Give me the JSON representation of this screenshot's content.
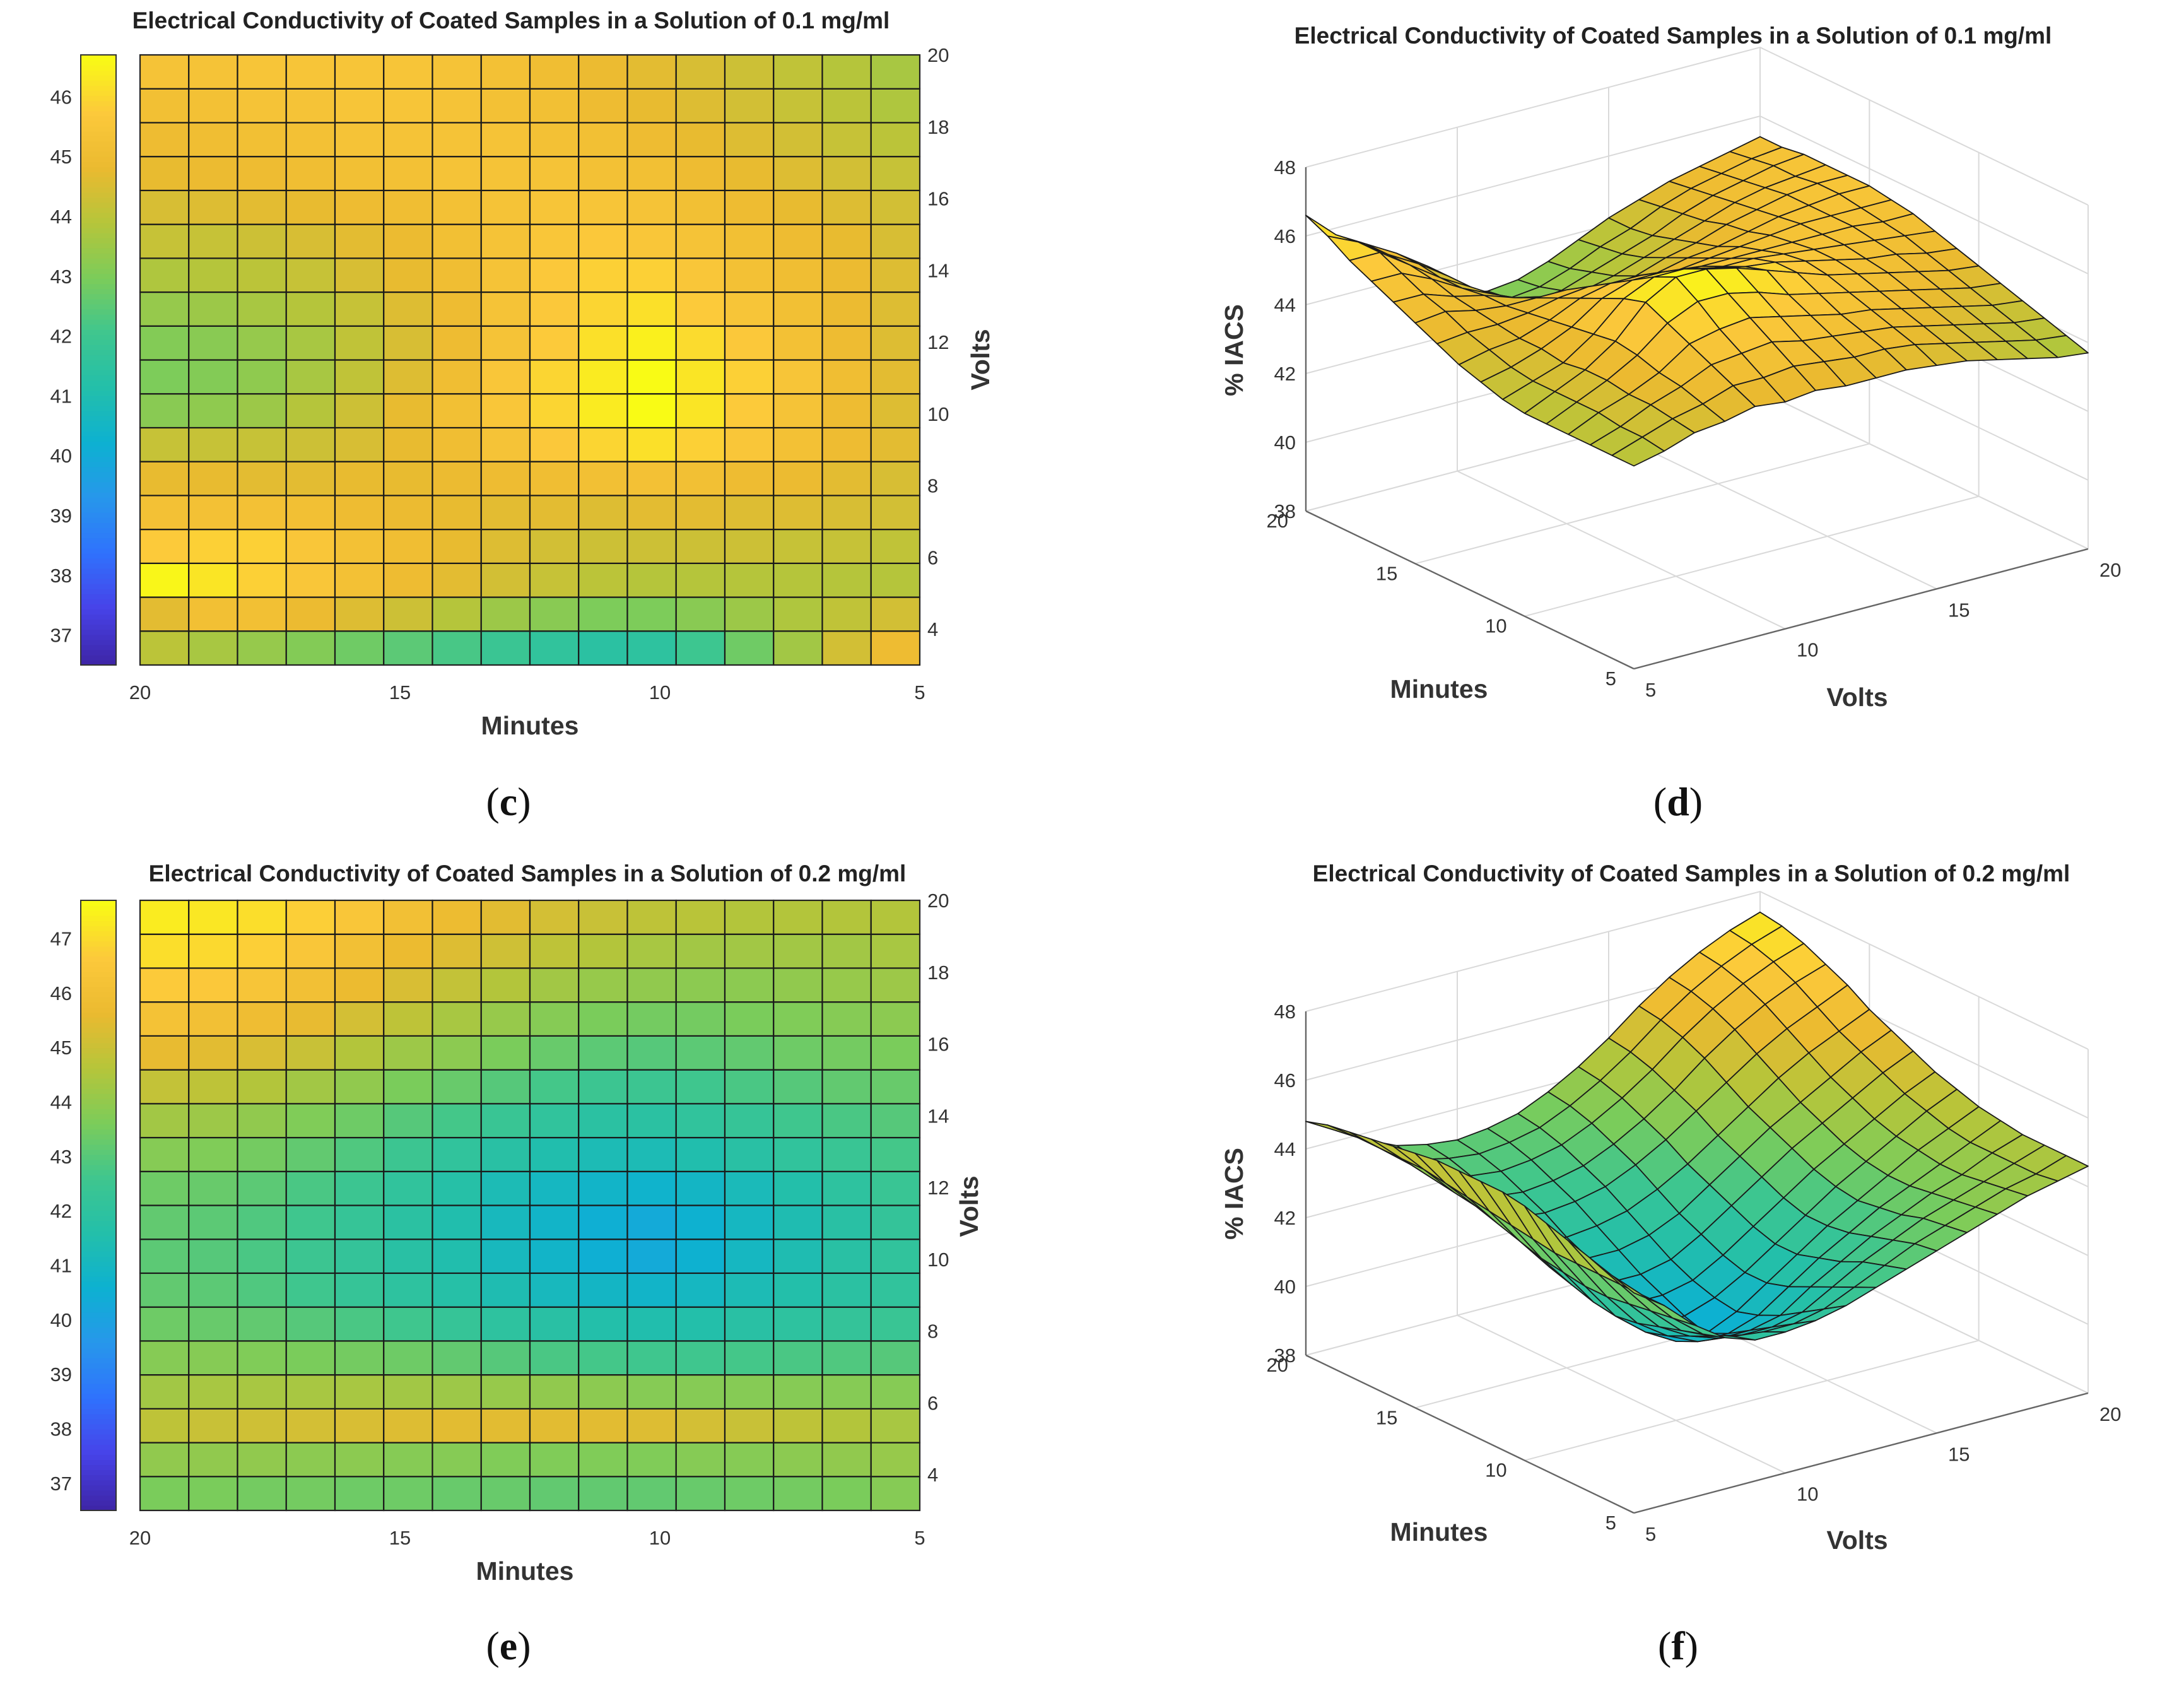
{
  "chart_data": [
    {
      "id": "c",
      "type": "heatmap",
      "caption_letter": "c",
      "title": "Electrical Conductivity of Coated Samples in a Solution of 0.1 mg/ml",
      "xlabel": "Minutes",
      "ylabel": "Volts",
      "x_ticks": [
        "20",
        "15",
        "10",
        "5"
      ],
      "y_ticks": [
        "4",
        "6",
        "8",
        "10",
        "12",
        "14",
        "16",
        "18",
        "20"
      ],
      "colorbar_ticks": [
        "37",
        "38",
        "39",
        "40",
        "41",
        "42",
        "43",
        "44",
        "45",
        "46"
      ],
      "xlim": [
        5,
        20
      ],
      "ylim": [
        3,
        20
      ],
      "clim": [
        36.5,
        46.7
      ],
      "colormap": [
        "#3e26a8",
        "#4743e9",
        "#2f72fd",
        "#2797eb",
        "#0db1d1",
        "#23bfaa",
        "#3fc68e",
        "#7ccc5a",
        "#b6c53a",
        "#ebba30",
        "#fcc93b",
        "#f9fb15"
      ],
      "grid_x": [
        20,
        19,
        18,
        17,
        16,
        15,
        14,
        13,
        12,
        11,
        10,
        9,
        8,
        7,
        6,
        5
      ],
      "grid_y": [
        3,
        4,
        5,
        6,
        7,
        8,
        9,
        10,
        11,
        12,
        13,
        14,
        15,
        16,
        17,
        18,
        19,
        20
      ],
      "values": [
        [
          44.0,
          43.7,
          43.4,
          43.1,
          42.8,
          42.5,
          42.2,
          41.9,
          41.6,
          41.4,
          41.5,
          42.0,
          42.8,
          43.6,
          44.4,
          45.0
        ],
        [
          44.7,
          45.2,
          45.2,
          44.9,
          44.6,
          44.3,
          43.9,
          43.5,
          43.2,
          43.0,
          43.0,
          43.2,
          43.5,
          43.8,
          44.1,
          44.4
        ],
        [
          46.6,
          46.3,
          45.9,
          45.6,
          45.3,
          45.0,
          44.7,
          44.4,
          44.2,
          44.0,
          43.9,
          43.9,
          43.9,
          43.9,
          43.9,
          43.9
        ],
        [
          45.8,
          45.9,
          45.9,
          45.6,
          45.3,
          45.1,
          44.8,
          44.6,
          44.4,
          44.3,
          44.3,
          44.3,
          44.3,
          44.2,
          44.2,
          44.1
        ],
        [
          45.3,
          45.3,
          45.3,
          45.2,
          45.0,
          44.9,
          44.8,
          44.7,
          44.7,
          44.6,
          44.7,
          44.7,
          44.6,
          44.6,
          44.5,
          44.4
        ],
        [
          44.8,
          44.8,
          44.7,
          44.7,
          44.8,
          44.8,
          44.9,
          45.0,
          45.1,
          45.2,
          45.3,
          45.2,
          45.0,
          44.9,
          44.7,
          44.5
        ],
        [
          44.2,
          44.2,
          44.2,
          44.3,
          44.5,
          44.8,
          45.1,
          45.4,
          45.7,
          46.0,
          46.2,
          45.9,
          45.6,
          45.3,
          45.0,
          44.7
        ],
        [
          43.2,
          43.3,
          43.5,
          43.9,
          44.3,
          44.8,
          45.2,
          45.6,
          46.0,
          46.4,
          46.7,
          46.3,
          45.8,
          45.4,
          45.0,
          44.6
        ],
        [
          43.0,
          43.1,
          43.3,
          43.7,
          44.1,
          44.6,
          45.1,
          45.6,
          46.0,
          46.4,
          46.7,
          46.3,
          45.9,
          45.5,
          45.1,
          44.7
        ],
        [
          43.1,
          43.2,
          43.4,
          43.7,
          44.1,
          44.5,
          45.0,
          45.4,
          45.8,
          46.2,
          46.5,
          46.1,
          45.7,
          45.3,
          45.0,
          44.6
        ],
        [
          43.4,
          43.5,
          43.7,
          43.9,
          44.2,
          44.6,
          45.0,
          45.4,
          45.7,
          46.0,
          46.2,
          45.8,
          45.5,
          45.2,
          44.9,
          44.6
        ],
        [
          43.8,
          43.9,
          44.0,
          44.2,
          44.5,
          44.8,
          45.1,
          45.4,
          45.7,
          45.9,
          45.9,
          45.6,
          45.3,
          45.1,
          44.9,
          44.6
        ],
        [
          44.2,
          44.2,
          44.3,
          44.5,
          44.7,
          44.9,
          45.2,
          45.4,
          45.6,
          45.7,
          45.6,
          45.4,
          45.2,
          45.0,
          44.8,
          44.5
        ],
        [
          44.5,
          44.6,
          44.7,
          44.8,
          45.0,
          45.1,
          45.3,
          45.4,
          45.5,
          45.5,
          45.4,
          45.2,
          45.0,
          44.8,
          44.6,
          44.4
        ],
        [
          44.8,
          44.9,
          45.0,
          45.1,
          45.2,
          45.3,
          45.4,
          45.4,
          45.4,
          45.3,
          45.2,
          45.0,
          44.8,
          44.6,
          44.4,
          44.2
        ],
        [
          45.0,
          45.1,
          45.2,
          45.3,
          45.4,
          45.4,
          45.4,
          45.4,
          45.3,
          45.2,
          45.0,
          44.8,
          44.6,
          44.4,
          44.2,
          44.0
        ],
        [
          45.2,
          45.3,
          45.4,
          45.4,
          45.5,
          45.5,
          45.4,
          45.3,
          45.2,
          45.0,
          44.8,
          44.6,
          44.4,
          44.2,
          44.0,
          43.8
        ],
        [
          45.4,
          45.4,
          45.5,
          45.5,
          45.5,
          45.5,
          45.4,
          45.3,
          45.1,
          44.9,
          44.7,
          44.5,
          44.3,
          44.1,
          43.9,
          43.7
        ]
      ]
    },
    {
      "id": "d",
      "type": "surface",
      "caption_letter": "d",
      "title": "Electrical Conductivity of Coated Samples in a Solution of 0.1 mg/ml",
      "zlabel": "% IACS",
      "xlabel": "Minutes",
      "ylabel": "Volts",
      "x_ticks": [
        "5",
        "10",
        "15",
        "20"
      ],
      "y_ticks": [
        "5",
        "10",
        "15",
        "20"
      ],
      "z_ticks": [
        "38",
        "40",
        "42",
        "44",
        "46",
        "48"
      ],
      "zlim": [
        38,
        48
      ],
      "source_grid": "c"
    },
    {
      "id": "e",
      "type": "heatmap",
      "caption_letter": "e",
      "title": "Electrical Conductivity of Coated Samples in a Solution of 0.2 mg/ml",
      "xlabel": "Minutes",
      "ylabel": "Volts",
      "x_ticks": [
        "20",
        "15",
        "10",
        "5"
      ],
      "y_ticks": [
        "4",
        "6",
        "8",
        "10",
        "12",
        "14",
        "16",
        "18",
        "20"
      ],
      "colorbar_ticks": [
        "37",
        "38",
        "39",
        "40",
        "41",
        "42",
        "43",
        "44",
        "45",
        "46",
        "47"
      ],
      "xlim": [
        5,
        20
      ],
      "ylim": [
        3,
        20
      ],
      "clim": [
        36.5,
        47.7
      ],
      "colormap": [
        "#3e26a8",
        "#4743e9",
        "#2f72fd",
        "#2797eb",
        "#0db1d1",
        "#23bfaa",
        "#3fc68e",
        "#7ccc5a",
        "#b6c53a",
        "#ebba30",
        "#fcc93b",
        "#f9fb15"
      ],
      "grid_x": [
        20,
        19,
        18,
        17,
        16,
        15,
        14,
        13,
        12,
        11,
        10,
        9,
        8,
        7,
        6,
        5
      ],
      "grid_y": [
        3,
        4,
        5,
        6,
        7,
        8,
        9,
        10,
        11,
        12,
        13,
        14,
        15,
        16,
        17,
        18,
        19,
        20
      ],
      "values": [
        [
          43.6,
          43.6,
          43.5,
          43.5,
          43.4,
          43.4,
          43.3,
          43.3,
          43.2,
          43.2,
          43.2,
          43.3,
          43.4,
          43.5,
          43.6,
          43.8
        ],
        [
          44.0,
          44.0,
          44.0,
          43.9,
          43.9,
          43.8,
          43.8,
          43.7,
          43.7,
          43.7,
          43.7,
          43.8,
          43.8,
          43.9,
          44.0,
          44.1
        ],
        [
          44.8,
          45.0,
          45.1,
          45.2,
          45.3,
          45.4,
          45.5,
          45.5,
          45.5,
          45.5,
          45.4,
          45.2,
          45.0,
          44.8,
          44.6,
          44.4
        ],
        [
          44.3,
          44.4,
          44.4,
          44.4,
          44.4,
          44.3,
          44.2,
          44.1,
          44.0,
          43.9,
          43.8,
          43.8,
          43.8,
          43.8,
          43.8,
          43.8
        ],
        [
          43.8,
          43.8,
          43.7,
          43.6,
          43.5,
          43.4,
          43.2,
          43.0,
          42.8,
          42.7,
          42.6,
          42.6,
          42.7,
          42.8,
          42.9,
          43.0
        ],
        [
          43.4,
          43.3,
          43.2,
          43.0,
          42.8,
          42.6,
          42.3,
          42.0,
          41.8,
          41.6,
          41.5,
          41.6,
          41.8,
          42.0,
          42.2,
          42.4
        ],
        [
          43.2,
          43.1,
          42.9,
          42.6,
          42.3,
          42.0,
          41.7,
          41.4,
          41.1,
          40.9,
          40.8,
          41.0,
          41.3,
          41.6,
          41.9,
          42.1
        ],
        [
          43.1,
          43.0,
          42.8,
          42.5,
          42.2,
          41.8,
          41.5,
          41.1,
          40.8,
          40.5,
          40.3,
          40.6,
          41.0,
          41.4,
          41.8,
          42.1
        ],
        [
          43.2,
          43.1,
          42.9,
          42.6,
          42.3,
          41.9,
          41.5,
          41.1,
          40.8,
          40.5,
          40.3,
          40.6,
          41.0,
          41.4,
          41.8,
          42.2
        ],
        [
          43.4,
          43.3,
          43.1,
          42.8,
          42.5,
          42.1,
          41.7,
          41.3,
          41.0,
          40.8,
          40.7,
          40.9,
          41.2,
          41.6,
          42.0,
          42.4
        ],
        [
          43.8,
          43.7,
          43.5,
          43.2,
          42.9,
          42.5,
          42.1,
          41.8,
          41.5,
          41.3,
          41.3,
          41.5,
          41.8,
          42.1,
          42.4,
          42.7
        ],
        [
          44.3,
          44.2,
          44.0,
          43.7,
          43.4,
          43.0,
          42.7,
          42.4,
          42.1,
          41.9,
          41.9,
          42.1,
          42.3,
          42.6,
          42.8,
          43.0
        ],
        [
          44.9,
          44.8,
          44.6,
          44.3,
          44.0,
          43.6,
          43.3,
          43.0,
          42.7,
          42.5,
          42.5,
          42.6,
          42.8,
          43.0,
          43.2,
          43.3
        ],
        [
          45.6,
          45.5,
          45.3,
          45.0,
          44.6,
          44.2,
          43.9,
          43.6,
          43.3,
          43.1,
          43.0,
          43.1,
          43.2,
          43.4,
          43.5,
          43.6
        ],
        [
          46.2,
          46.1,
          45.9,
          45.6,
          45.2,
          44.8,
          44.4,
          44.1,
          43.8,
          43.6,
          43.5,
          43.5,
          43.6,
          43.7,
          43.8,
          43.9
        ],
        [
          46.7,
          46.6,
          46.4,
          46.1,
          45.7,
          45.3,
          44.9,
          44.6,
          44.3,
          44.1,
          44.0,
          43.9,
          43.9,
          44.0,
          44.1,
          44.2
        ],
        [
          47.1,
          47.0,
          46.8,
          46.5,
          46.1,
          45.7,
          45.4,
          45.1,
          44.8,
          44.6,
          44.4,
          44.3,
          44.3,
          44.3,
          44.3,
          44.4
        ],
        [
          47.4,
          47.3,
          47.1,
          46.8,
          46.5,
          46.1,
          45.8,
          45.5,
          45.2,
          45.0,
          44.8,
          44.7,
          44.6,
          44.6,
          44.6,
          44.6
        ]
      ]
    },
    {
      "id": "f",
      "type": "surface",
      "caption_letter": "f",
      "title": "Electrical Conductivity of Coated Samples in a Solution of 0.2 mg/ml",
      "zlabel": "% IACS",
      "xlabel": "Minutes",
      "ylabel": "Volts",
      "x_ticks": [
        "5",
        "10",
        "15",
        "20"
      ],
      "y_ticks": [
        "5",
        "10",
        "15",
        "20"
      ],
      "z_ticks": [
        "38",
        "40",
        "42",
        "44",
        "46",
        "48"
      ],
      "zlim": [
        38,
        48
      ],
      "source_grid": "e"
    }
  ]
}
